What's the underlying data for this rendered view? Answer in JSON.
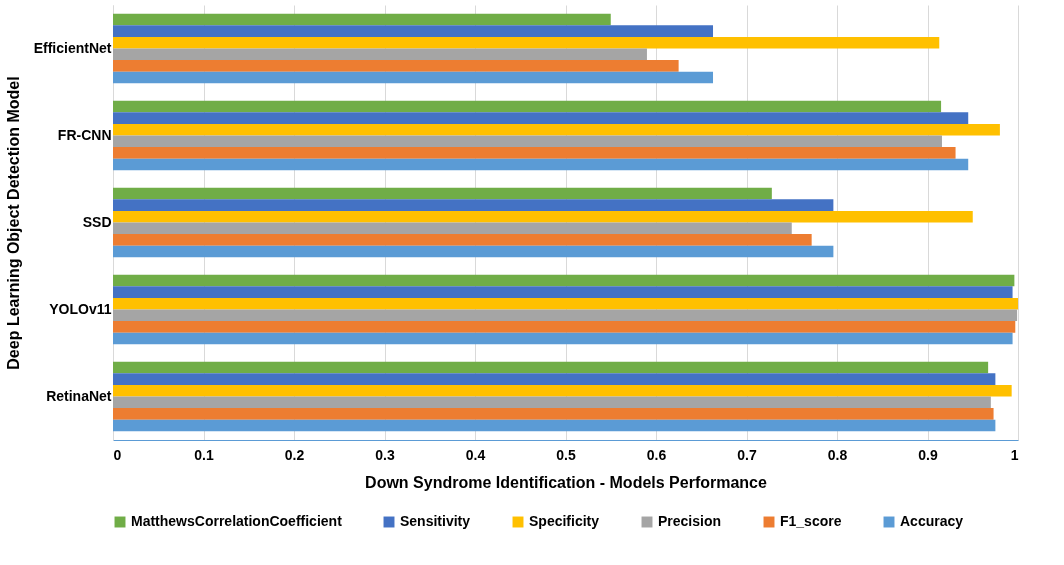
{
  "chart_data": {
    "type": "bar",
    "orientation": "horizontal",
    "xlabel": "Down Syndrome Identification - Models Performance",
    "ylabel": "Deep Learning Object Detection Model",
    "categories": [
      "EfficientNet",
      "FR-CNN",
      "SSD",
      "YOLOv11",
      "RetinaNet"
    ],
    "series": [
      {
        "name": "MatthewsCorrelationCoefficient",
        "color": "#70ad47",
        "values": [
          0.55,
          0.915,
          0.728,
          0.996,
          0.967
        ]
      },
      {
        "name": "Sensitivity",
        "color": "#4472c4",
        "values": [
          0.663,
          0.945,
          0.796,
          0.994,
          0.975
        ]
      },
      {
        "name": "Specificity",
        "color": "#ffc000",
        "values": [
          0.913,
          0.98,
          0.95,
          1.0,
          0.993
        ]
      },
      {
        "name": "Precision",
        "color": "#a5a5a5",
        "values": [
          0.59,
          0.916,
          0.75,
          0.999,
          0.97
        ]
      },
      {
        "name": "F1_score",
        "color": "#ed7d31",
        "values": [
          0.625,
          0.931,
          0.772,
          0.997,
          0.973
        ]
      },
      {
        "name": "Accuracy",
        "color": "#5b9bd5",
        "values": [
          0.663,
          0.945,
          0.796,
          0.994,
          0.975
        ]
      }
    ],
    "xlim": [
      0,
      1
    ],
    "xticks": [
      0,
      0.1,
      0.2,
      0.3,
      0.4,
      0.5,
      0.6,
      0.7,
      0.8,
      0.9,
      1
    ],
    "grid": "x",
    "legend": "bottom"
  }
}
